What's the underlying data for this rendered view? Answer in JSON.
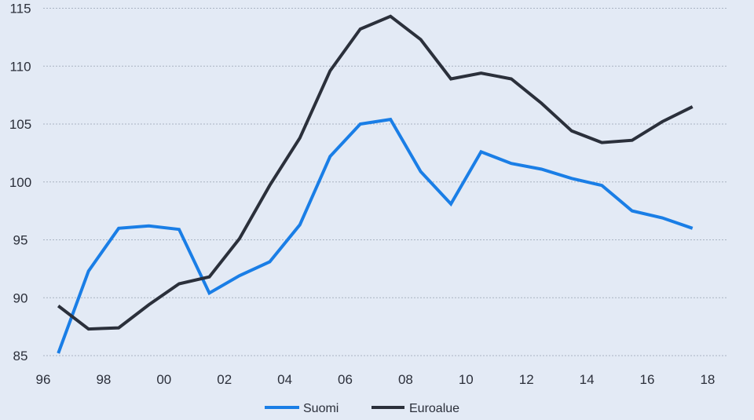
{
  "chart_data": {
    "type": "line",
    "title": "",
    "xlabel": "",
    "ylabel": "",
    "xlim": [
      1996,
      2018.2
    ],
    "ylim": [
      84,
      115.5
    ],
    "grid": true,
    "legend_position": "bottom-center",
    "x_ticks": [
      {
        "value": 1996,
        "label": "96"
      },
      {
        "value": 1998,
        "label": "98"
      },
      {
        "value": 2000,
        "label": "00"
      },
      {
        "value": 2002,
        "label": "02"
      },
      {
        "value": 2004,
        "label": "04"
      },
      {
        "value": 2006,
        "label": "06"
      },
      {
        "value": 2008,
        "label": "08"
      },
      {
        "value": 2010,
        "label": "10"
      },
      {
        "value": 2012,
        "label": "12"
      },
      {
        "value": 2014,
        "label": "14"
      },
      {
        "value": 2016,
        "label": "16"
      },
      {
        "value": 2018,
        "label": "18"
      }
    ],
    "y_ticks": [
      85,
      90,
      95,
      100,
      105,
      110,
      115
    ],
    "x": [
      1996.5,
      1997.5,
      1998.5,
      1999.5,
      2000.5,
      2001.5,
      2002.5,
      2003.5,
      2004.5,
      2005.5,
      2006.5,
      2007.5,
      2008.5,
      2009.5,
      2010.5,
      2011.5,
      2012.5,
      2013.5,
      2014.5,
      2015.5,
      2016.5,
      2017.5
    ],
    "series": [
      {
        "name": "Suomi",
        "color": "#1a7ee6",
        "values": [
          85.2,
          92.3,
          96.0,
          96.2,
          95.9,
          90.4,
          91.9,
          93.1,
          96.3,
          102.2,
          105.0,
          105.4,
          100.9,
          98.1,
          102.6,
          101.6,
          101.1,
          100.3,
          99.7,
          97.5,
          96.9,
          96.0
        ]
      },
      {
        "name": "Euroalue",
        "color": "#2b303b",
        "values": [
          89.3,
          87.3,
          87.4,
          89.4,
          91.2,
          91.8,
          95.1,
          99.7,
          103.8,
          109.6,
          113.2,
          114.3,
          112.3,
          108.9,
          109.4,
          108.9,
          106.8,
          104.4,
          103.4,
          103.6,
          105.2,
          106.5
        ]
      }
    ]
  }
}
